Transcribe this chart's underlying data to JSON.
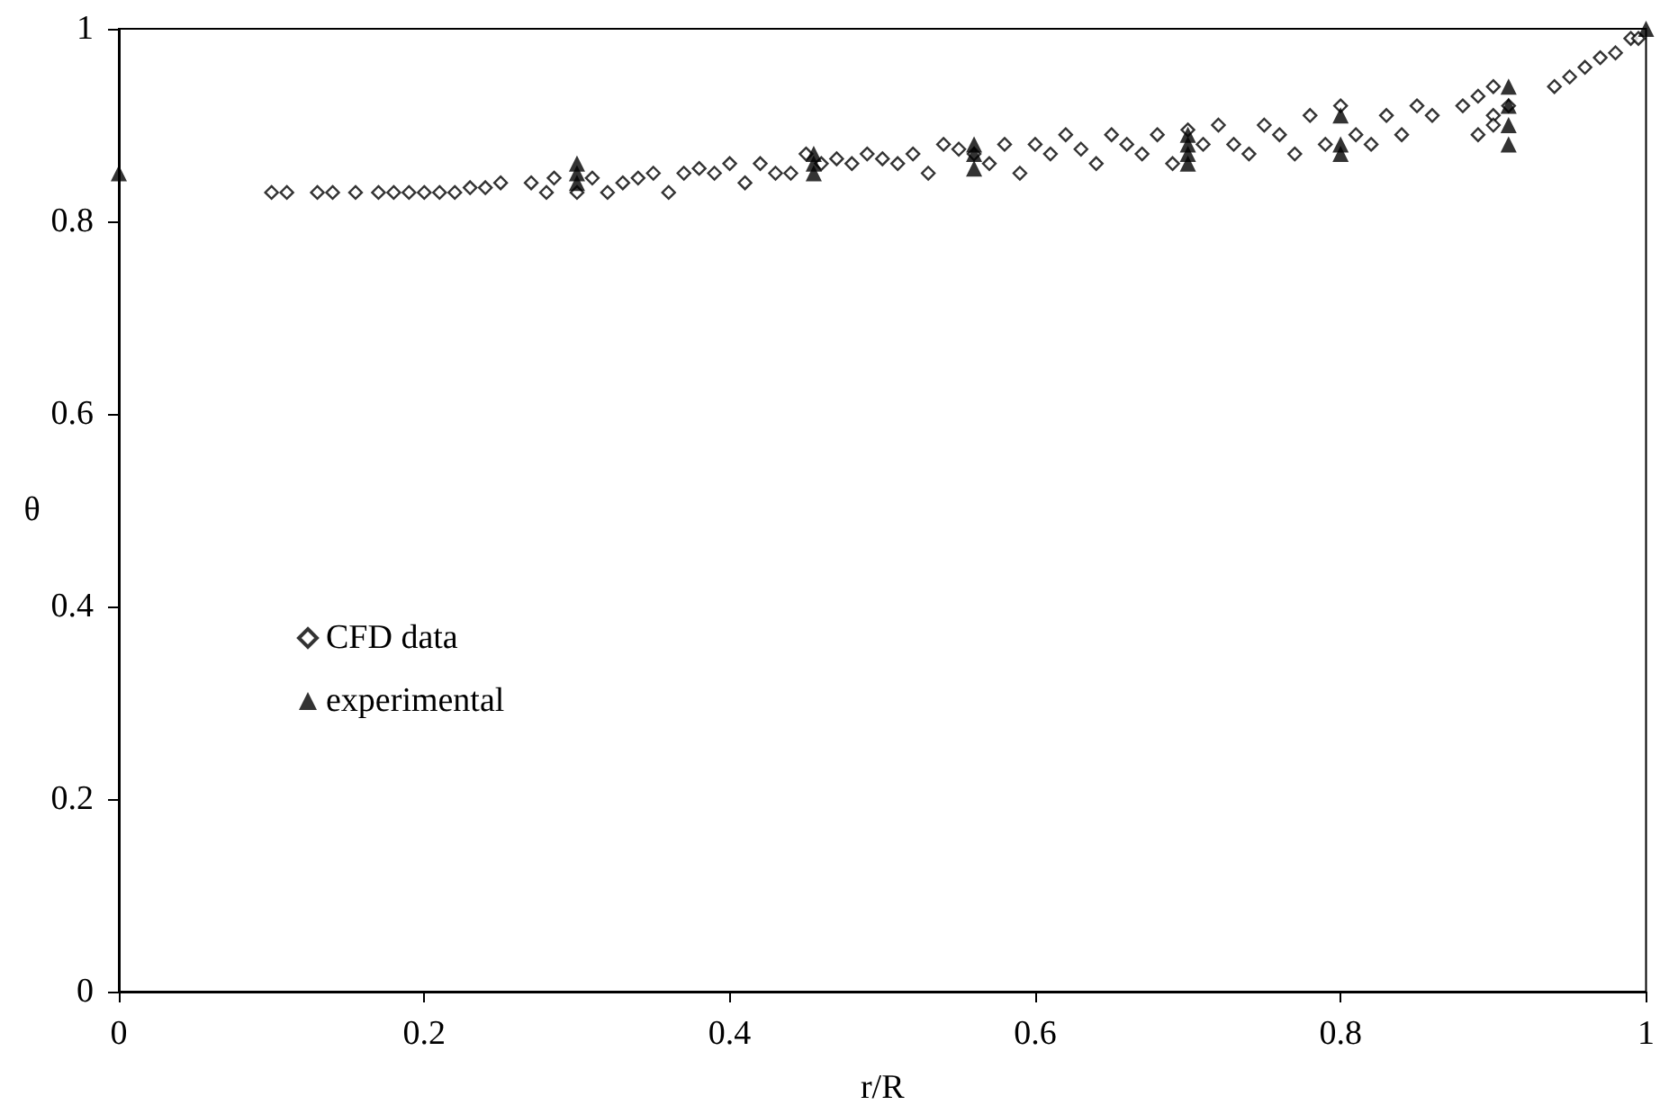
{
  "chart_data": {
    "type": "scatter",
    "xlabel": "r/R",
    "ylabel": "θ",
    "xlim": [
      0,
      1
    ],
    "ylim": [
      0,
      1
    ],
    "xticks": [
      0,
      0.2,
      0.4,
      0.6,
      0.8,
      1
    ],
    "yticks": [
      0,
      0.2,
      0.4,
      0.6,
      0.8,
      1
    ],
    "grid": false,
    "legend": "left",
    "series": [
      {
        "name": "CFD data",
        "color": "#000000",
        "marker": "diamond",
        "x": [
          0.1,
          0.11,
          0.13,
          0.14,
          0.155,
          0.17,
          0.18,
          0.19,
          0.2,
          0.21,
          0.22,
          0.23,
          0.24,
          0.25,
          0.27,
          0.28,
          0.285,
          0.3,
          0.31,
          0.32,
          0.33,
          0.34,
          0.35,
          0.36,
          0.37,
          0.38,
          0.39,
          0.4,
          0.41,
          0.42,
          0.43,
          0.44,
          0.45,
          0.46,
          0.47,
          0.48,
          0.49,
          0.5,
          0.51,
          0.52,
          0.53,
          0.54,
          0.55,
          0.56,
          0.57,
          0.58,
          0.59,
          0.6,
          0.61,
          0.62,
          0.63,
          0.64,
          0.65,
          0.66,
          0.67,
          0.68,
          0.69,
          0.7,
          0.71,
          0.72,
          0.73,
          0.74,
          0.75,
          0.76,
          0.77,
          0.78,
          0.79,
          0.8,
          0.81,
          0.82,
          0.83,
          0.84,
          0.85,
          0.86,
          0.88,
          0.89,
          0.89,
          0.9,
          0.9,
          0.9,
          0.91,
          0.94,
          0.95,
          0.96,
          0.97,
          0.98,
          0.99,
          0.995
        ],
        "values": [
          0.83,
          0.83,
          0.83,
          0.83,
          0.83,
          0.83,
          0.83,
          0.83,
          0.83,
          0.83,
          0.83,
          0.835,
          0.835,
          0.84,
          0.84,
          0.83,
          0.845,
          0.83,
          0.845,
          0.83,
          0.84,
          0.845,
          0.85,
          0.83,
          0.85,
          0.855,
          0.85,
          0.86,
          0.84,
          0.86,
          0.85,
          0.85,
          0.87,
          0.86,
          0.865,
          0.86,
          0.87,
          0.865,
          0.86,
          0.87,
          0.85,
          0.88,
          0.875,
          0.87,
          0.86,
          0.88,
          0.85,
          0.88,
          0.87,
          0.89,
          0.875,
          0.86,
          0.89,
          0.88,
          0.87,
          0.89,
          0.86,
          0.895,
          0.88,
          0.9,
          0.88,
          0.87,
          0.9,
          0.89,
          0.87,
          0.91,
          0.88,
          0.92,
          0.89,
          0.88,
          0.91,
          0.89,
          0.92,
          0.91,
          0.92,
          0.93,
          0.89,
          0.94,
          0.91,
          0.9,
          0.92,
          0.94,
          0.95,
          0.96,
          0.97,
          0.975,
          0.99,
          0.99
        ]
      },
      {
        "name": "experimental",
        "color": "#000000",
        "marker": "triangle",
        "x": [
          0,
          0.3,
          0.3,
          0.3,
          0.455,
          0.455,
          0.455,
          0.56,
          0.56,
          0.56,
          0.7,
          0.7,
          0.7,
          0.7,
          0.8,
          0.8,
          0.8,
          0.91,
          0.91,
          0.91,
          0.91,
          1
        ],
        "values": [
          0.85,
          0.84,
          0.85,
          0.86,
          0.85,
          0.86,
          0.87,
          0.855,
          0.87,
          0.88,
          0.86,
          0.87,
          0.88,
          0.89,
          0.87,
          0.88,
          0.91,
          0.88,
          0.9,
          0.92,
          0.94,
          1
        ]
      }
    ]
  }
}
